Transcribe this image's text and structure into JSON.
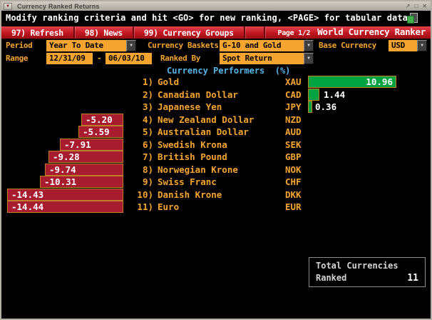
{
  "window": {
    "title": "Currency Ranked Returns",
    "controls": {
      "menu": "▼",
      "restore": "↗",
      "maximize": "□",
      "close": "✕"
    }
  },
  "message": "Modify ranking criteria and hit <GO> for new ranking, <PAGE> for tabular data",
  "menubar": {
    "items": [
      {
        "label": "97) Refresh"
      },
      {
        "label": "98) News"
      },
      {
        "label": "99) Currency Groups"
      }
    ],
    "page": "Page 1/2",
    "app_title": "World Currency Ranker"
  },
  "filters": {
    "period_label": "Period",
    "period_value": "Year To Date",
    "baskets_label": "Currency Baskets",
    "baskets_value": "G-10 and Gold",
    "base_label": "Base Currency",
    "base_value": "USD",
    "range_label": "Range",
    "range_start": "12/31/09",
    "range_separator": "-",
    "range_end": "06/03/10",
    "ranked_by_label": "Ranked By",
    "ranked_by_value": "Spot Return"
  },
  "chart_data": {
    "type": "bar",
    "orientation": "horizontal",
    "title": "Currency Performers  (%)",
    "unit": "%",
    "xlim": [
      -15.2,
      11.2
    ],
    "rows": [
      {
        "rank": "1)",
        "name": "Gold",
        "code": "XAU",
        "value": 10.96,
        "display": "10.96"
      },
      {
        "rank": "2)",
        "name": "Canadian Dollar",
        "code": "CAD",
        "value": 1.44,
        "display": "1.44"
      },
      {
        "rank": "3)",
        "name": "Japanese Yen",
        "code": "JPY",
        "value": 0.36,
        "display": "0.36"
      },
      {
        "rank": "4)",
        "name": "New Zealand Dollar",
        "code": "NZD",
        "value": -5.2,
        "display": "-5.20"
      },
      {
        "rank": "5)",
        "name": "Australian Dollar",
        "code": "AUD",
        "value": -5.59,
        "display": "-5.59"
      },
      {
        "rank": "6)",
        "name": "Swedish Krona",
        "code": "SEK",
        "value": -7.91,
        "display": "-7.91"
      },
      {
        "rank": "7)",
        "name": "British Pound",
        "code": "GBP",
        "value": -9.28,
        "display": "-9.28"
      },
      {
        "rank": "8)",
        "name": "Norwegian Krone",
        "code": "NOK",
        "value": -9.74,
        "display": "-9.74"
      },
      {
        "rank": "9)",
        "name": "Swiss Franc",
        "code": "CHF",
        "value": -10.31,
        "display": "-10.31"
      },
      {
        "rank": "10)",
        "name": "Danish Krone",
        "code": "DKK",
        "value": -14.43,
        "display": "-14.43"
      },
      {
        "rank": "11)",
        "name": "Euro",
        "code": "EUR",
        "value": -14.44,
        "display": "-14.44"
      }
    ]
  },
  "summary": {
    "line1": "Total Currencies",
    "line2": "Ranked",
    "count": "11"
  },
  "colors": {
    "amber": "#f5a42f",
    "positive_bar": "#00a33f",
    "negative_bar": "#a81c30",
    "bar_border": "#bf7f27",
    "menubar_red": "#c01620",
    "heading_cyan": "#57b4e8"
  }
}
